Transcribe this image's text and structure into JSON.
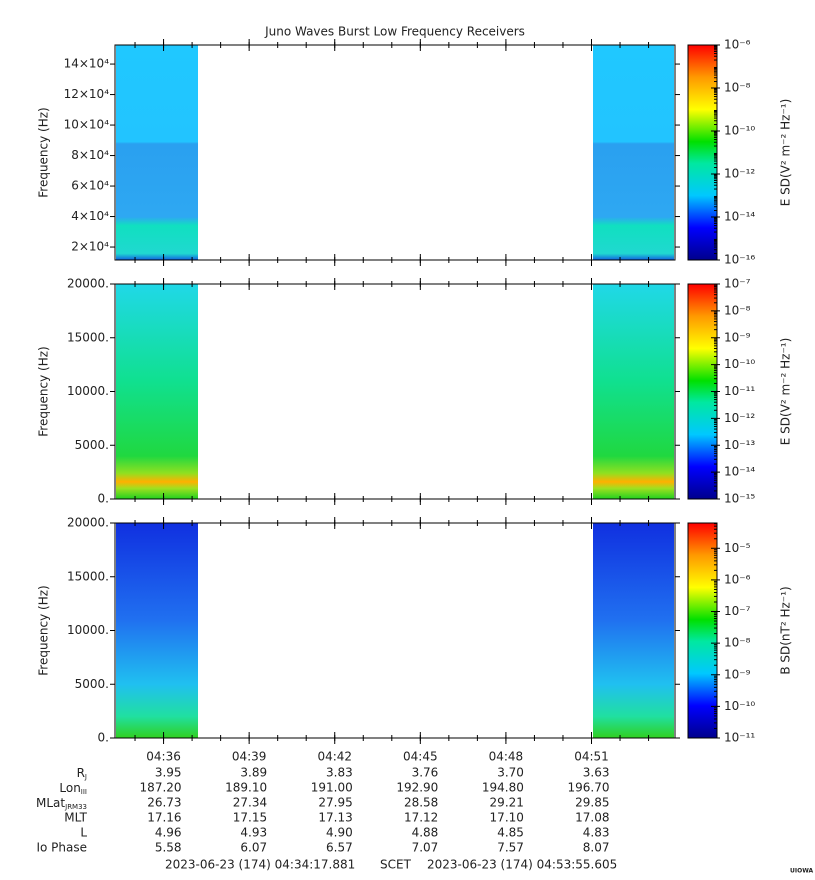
{
  "chart_data": [
    {
      "type": "spectrogram",
      "title": "Juno Waves Burst Low Frequency Receivers",
      "y_label": "Frequency (Hz)",
      "ylim": [
        11500,
        152500
      ],
      "yticks": [
        {
          "value": 20000,
          "label": "2×10⁴"
        },
        {
          "value": 40000,
          "label": "4×10⁴"
        },
        {
          "value": 60000,
          "label": "6×10⁴"
        },
        {
          "value": 80000,
          "label": "8×10⁴"
        },
        {
          "value": 100000,
          "label": "10×10⁴"
        },
        {
          "value": 120000,
          "label": "12×10⁴"
        },
        {
          "value": 140000,
          "label": "14×10⁴"
        }
      ],
      "colorbar_label": "E SD(V² m⁻² Hz⁻¹)",
      "log_z": true,
      "zlim": [
        1e-16,
        1e-06
      ],
      "zticks": [
        {
          "value": 1e-06,
          "label": "10⁻⁶"
        },
        {
          "value": 1e-08,
          "label": "10⁻⁸"
        },
        {
          "value": 1e-10,
          "label": "10⁻¹⁰"
        },
        {
          "value": 1e-12,
          "label": "10⁻¹²"
        },
        {
          "value": 1e-14,
          "label": "10⁻¹⁴"
        },
        {
          "value": 1e-16,
          "label": "10⁻¹⁶"
        }
      ]
    },
    {
      "type": "spectrogram",
      "y_label": "Frequency (Hz)",
      "ylim": [
        0,
        20000
      ],
      "yticks": [
        {
          "value": 0,
          "label": "0."
        },
        {
          "value": 5000,
          "label": "5000."
        },
        {
          "value": 10000,
          "label": "10000."
        },
        {
          "value": 15000,
          "label": "15000."
        },
        {
          "value": 20000,
          "label": "20000."
        }
      ],
      "colorbar_label": "E SD(V² m⁻² Hz⁻¹)",
      "log_z": true,
      "zlim": [
        1e-15,
        1e-07
      ],
      "zticks": [
        {
          "value": 1e-07,
          "label": "10⁻⁷"
        },
        {
          "value": 1e-08,
          "label": "10⁻⁸"
        },
        {
          "value": 1e-09,
          "label": "10⁻⁹"
        },
        {
          "value": 1e-10,
          "label": "10⁻¹⁰"
        },
        {
          "value": 1e-11,
          "label": "10⁻¹¹"
        },
        {
          "value": 1e-12,
          "label": "10⁻¹²"
        },
        {
          "value": 1e-13,
          "label": "10⁻¹³"
        },
        {
          "value": 1e-14,
          "label": "10⁻¹⁴"
        },
        {
          "value": 1e-15,
          "label": "10⁻¹⁵"
        }
      ]
    },
    {
      "type": "spectrogram",
      "y_label": "Frequency (Hz)",
      "ylim": [
        0,
        20000
      ],
      "yticks": [
        {
          "value": 0,
          "label": "0."
        },
        {
          "value": 5000,
          "label": "5000."
        },
        {
          "value": 10000,
          "label": "10000."
        },
        {
          "value": 15000,
          "label": "15000."
        },
        {
          "value": 20000,
          "label": "20000."
        }
      ],
      "colorbar_label": "B SD(nT² Hz⁻¹)",
      "log_z": true,
      "zlim": [
        1e-11,
        6.3e-05
      ],
      "zticks": [
        {
          "value": 1e-05,
          "label": "10⁻⁵"
        },
        {
          "value": 1e-06,
          "label": "10⁻⁶"
        },
        {
          "value": 1e-07,
          "label": "10⁻⁷"
        },
        {
          "value": 1e-08,
          "label": "10⁻⁸"
        },
        {
          "value": 1e-09,
          "label": "10⁻⁹"
        },
        {
          "value": 1e-10,
          "label": "10⁻¹⁰"
        },
        {
          "value": 1e-11,
          "label": "10⁻¹¹"
        }
      ]
    }
  ],
  "time_axis": {
    "xticks": [
      "04:36",
      "04:39",
      "04:42",
      "04:45",
      "04:48",
      "04:51"
    ]
  },
  "ephemeris": {
    "rows": [
      {
        "label": "R",
        "sub": "J",
        "values": [
          "3.95",
          "3.89",
          "3.83",
          "3.76",
          "3.70",
          "3.63"
        ]
      },
      {
        "label": "Lon",
        "sub": "III",
        "values": [
          "187.20",
          "189.10",
          "191.00",
          "192.90",
          "194.80",
          "196.70"
        ]
      },
      {
        "label": "MLat",
        "sub": "JRM33",
        "values": [
          "26.73",
          "27.34",
          "27.95",
          "28.58",
          "29.21",
          "29.85"
        ]
      },
      {
        "label": "MLT",
        "values": [
          "17.16",
          "17.15",
          "17.13",
          "17.12",
          "17.10",
          "17.08"
        ]
      },
      {
        "label": "L",
        "values": [
          "4.96",
          "4.93",
          "4.90",
          "4.88",
          "4.85",
          "4.83"
        ]
      },
      {
        "label": "Io Phase",
        "values": [
          "5.58",
          "6.07",
          "6.57",
          "7.07",
          "7.57",
          "8.07"
        ]
      }
    ]
  },
  "footer": {
    "start": "2023-06-23 (174) 04:34:17.881",
    "scet": "SCET",
    "end": "2023-06-23 (174) 04:53:55.605",
    "credit": "UIOWA 20231201"
  }
}
